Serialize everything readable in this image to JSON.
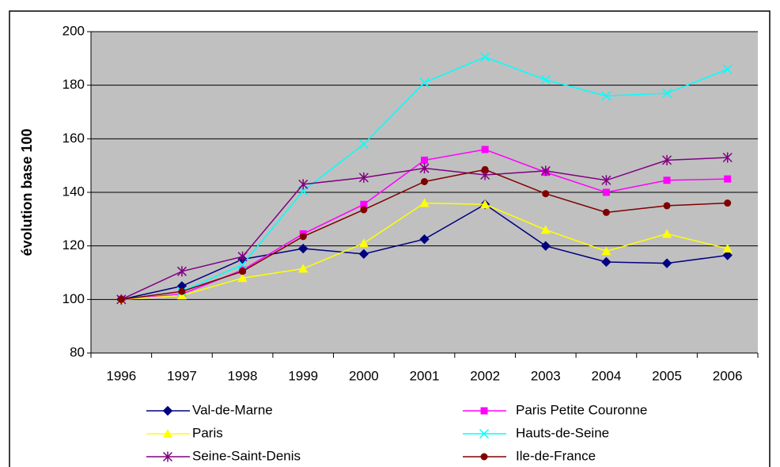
{
  "chart_data": {
    "type": "line",
    "y_label": "évolution base 100",
    "categories": [
      "1996",
      "1997",
      "1998",
      "1999",
      "2000",
      "2001",
      "2002",
      "2003",
      "2004",
      "2005",
      "2006"
    ],
    "ylim": [
      80,
      200
    ],
    "yticks": [
      80,
      100,
      120,
      140,
      160,
      180,
      200
    ],
    "grid": true,
    "series": [
      {
        "name": "Val-de-Marne",
        "color": "#000080",
        "marker": "diamond",
        "values": [
          100,
          105,
          115,
          119,
          117,
          122.5,
          135.5,
          120,
          114,
          113.5,
          116.5
        ]
      },
      {
        "name": "Paris Petite Couronne",
        "color": "#ff00ff",
        "marker": "square",
        "values": [
          100,
          102,
          111,
          124.5,
          135.5,
          152,
          156,
          147.5,
          140,
          144.5,
          145
        ]
      },
      {
        "name": "Paris",
        "color": "#ffff00",
        "marker": "triangle",
        "values": [
          100,
          101.5,
          108,
          111.5,
          121,
          136,
          135.5,
          126,
          118,
          124.5,
          119
        ]
      },
      {
        "name": "Hauts-de-Seine",
        "color": "#00ffff",
        "marker": "x",
        "values": [
          100,
          103,
          113,
          140.5,
          158,
          181,
          190.5,
          182,
          176,
          177,
          186
        ]
      },
      {
        "name": "Seine-Saint-Denis",
        "color": "#800080",
        "marker": "star",
        "values": [
          100,
          110.5,
          116,
          143,
          145.5,
          149,
          146.5,
          148,
          144.5,
          152,
          153
        ]
      },
      {
        "name": "Ile-de-France",
        "color": "#800000",
        "marker": "circle",
        "values": [
          100,
          103,
          110.5,
          123.5,
          133.5,
          144,
          148.5,
          139.5,
          132.5,
          135,
          136
        ]
      }
    ]
  }
}
